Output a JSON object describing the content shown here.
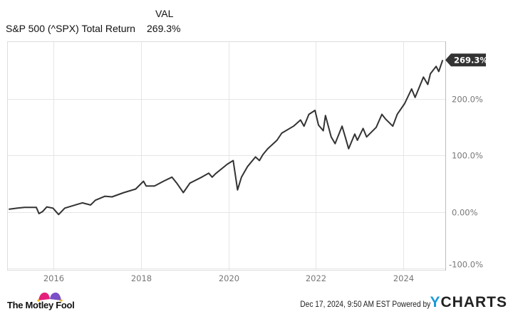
{
  "legend": {
    "column_header": "VAL",
    "series_name": "S&P 500 (^SPX) Total Return",
    "series_value": "269.3%"
  },
  "footer": {
    "logo_text": "The Motley Fool",
    "timestamp": "Dec 17, 2024, 9:50 AM EST",
    "powered_by": "Powered by",
    "brand_y": "Y",
    "brand_rest": "CHARTS"
  },
  "colors": {
    "line": "#333333",
    "grid": "#e6e6e6",
    "callout": "#333333",
    "ycharts_blue": "#1a9bd7"
  },
  "chart_data": {
    "type": "line",
    "title": "S&P 500 (^SPX) Total Return",
    "xlabel": "",
    "ylabel": "",
    "xlim": [
      2014.95,
      2024.96
    ],
    "ylim": [
      -104,
      302.5
    ],
    "x_ticks": [
      {
        "v": 2016,
        "label": "2016"
      },
      {
        "v": 2018,
        "label": "2018"
      },
      {
        "v": 2020,
        "label": "2020"
      },
      {
        "v": 2022,
        "label": "2022"
      },
      {
        "v": 2024,
        "label": "2024"
      }
    ],
    "y_ticks": [
      {
        "v": -100,
        "label": "-100.0%"
      },
      {
        "v": 0,
        "label": "0.00%"
      },
      {
        "v": 100,
        "label": "100.0%"
      },
      {
        "v": 200,
        "label": "200.0%"
      }
    ],
    "end_label": "269.3%",
    "grid": true,
    "series": [
      {
        "name": "S&P 500 (^SPX) Total Return",
        "x": [
          2014.98,
          2015.18,
          2015.34,
          2015.61,
          2015.67,
          2015.75,
          2015.85,
          2015.99,
          2016.12,
          2016.26,
          2016.53,
          2016.66,
          2016.85,
          2016.96,
          2017.18,
          2017.34,
          2017.61,
          2017.88,
          2018.06,
          2018.12,
          2018.31,
          2018.53,
          2018.71,
          2018.82,
          2018.97,
          2019.12,
          2019.39,
          2019.55,
          2019.63,
          2019.71,
          2019.98,
          2020.11,
          2020.21,
          2020.3,
          2020.44,
          2020.62,
          2020.71,
          2020.79,
          2020.9,
          2021.11,
          2021.22,
          2021.49,
          2021.65,
          2021.73,
          2021.84,
          2021.98,
          2022.06,
          2022.17,
          2022.22,
          2022.35,
          2022.44,
          2022.6,
          2022.68,
          2022.75,
          2022.89,
          2022.95,
          2023.08,
          2023.16,
          2023.38,
          2023.51,
          2023.59,
          2023.76,
          2023.86,
          2024.03,
          2024.19,
          2024.27,
          2024.46,
          2024.56,
          2024.62,
          2024.75,
          2024.81,
          2024.9
        ],
        "y": [
          4.7,
          6.7,
          8,
          8,
          -3,
          0.4,
          8.9,
          6.7,
          -4.7,
          6.7,
          13,
          16,
          12.3,
          20.7,
          27.8,
          26.6,
          34.2,
          40.5,
          54.4,
          46,
          46,
          55,
          61.6,
          51,
          34.2,
          51,
          61.6,
          68.7,
          61.6,
          68,
          84.8,
          91,
          39,
          61.6,
          80.6,
          97.5,
          91,
          101.6,
          112,
          127,
          139.6,
          152,
          163,
          152,
          173,
          180,
          154,
          144,
          171,
          133,
          121,
          152,
          131,
          112,
          138,
          127,
          148,
          133,
          150,
          173,
          165,
          152,
          173,
          192,
          218,
          203,
          239,
          226,
          245,
          258,
          249,
          269.3
        ]
      }
    ]
  }
}
